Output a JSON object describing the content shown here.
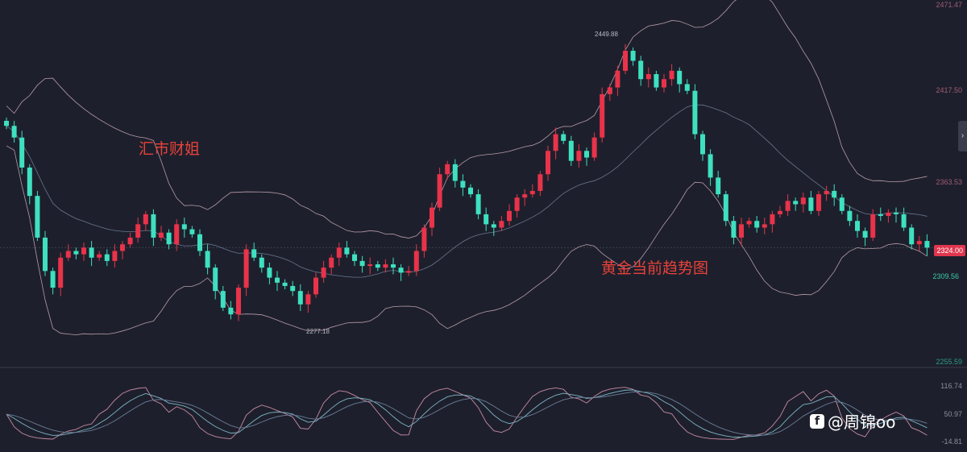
{
  "chart_data": {
    "type": "candlestick",
    "title": "",
    "annotations": {
      "overlay_text_1": "汇市财姐",
      "overlay_text_2": "黄金当前趋势图",
      "high_label": "2449.88",
      "low_label": "2277.18"
    },
    "price_axis_ticks": [
      "2471.47",
      "2417.50",
      "2363.53",
      "2309.56",
      "2255.59"
    ],
    "ylim": [
      2255.59,
      2471.47
    ],
    "last_price": "2324.00",
    "indicator_axis_ticks": [
      "116.74",
      "50.97",
      "-14.81"
    ],
    "indicator_ylim": [
      -14.81,
      116.74
    ],
    "overlays": [
      "bollinger-bands"
    ],
    "colors": {
      "up": "#e8334a",
      "down": "#3ee0c0",
      "band": "#b89aa8",
      "mid": "#6a7690",
      "background": "#1d202c"
    },
    "closes": [
      2397,
      2390,
      2372,
      2355,
      2330,
      2310,
      2300,
      2318,
      2322,
      2320,
      2324,
      2318,
      2320,
      2316,
      2322,
      2326,
      2330,
      2338,
      2344,
      2330,
      2333,
      2326,
      2338,
      2335,
      2332,
      2322,
      2312,
      2298,
      2288,
      2284,
      2300,
      2323,
      2318,
      2312,
      2306,
      2303,
      2301,
      2298,
      2290,
      2296,
      2306,
      2312,
      2318,
      2324,
      2320,
      2316,
      2313,
      2314,
      2312,
      2314,
      2312,
      2309,
      2310,
      2322,
      2336,
      2348,
      2368,
      2374,
      2364,
      2360,
      2356,
      2344,
      2338,
      2336,
      2340,
      2346,
      2354,
      2356,
      2358,
      2368,
      2382,
      2392,
      2388,
      2376,
      2382,
      2378,
      2390,
      2416,
      2420,
      2430,
      2442,
      2436,
      2425,
      2428,
      2420,
      2425,
      2430,
      2422,
      2418,
      2392,
      2380,
      2366,
      2356,
      2340,
      2330,
      2338,
      2340,
      2336,
      2338,
      2344,
      2346,
      2352,
      2350,
      2354,
      2346,
      2356,
      2358,
      2354,
      2346,
      2340,
      2334,
      2330,
      2344,
      2343,
      2345,
      2344,
      2336,
      2326,
      2328,
      2324
    ]
  },
  "watermark": "@周锦oo",
  "expand_icon": "chevron-right-icon"
}
